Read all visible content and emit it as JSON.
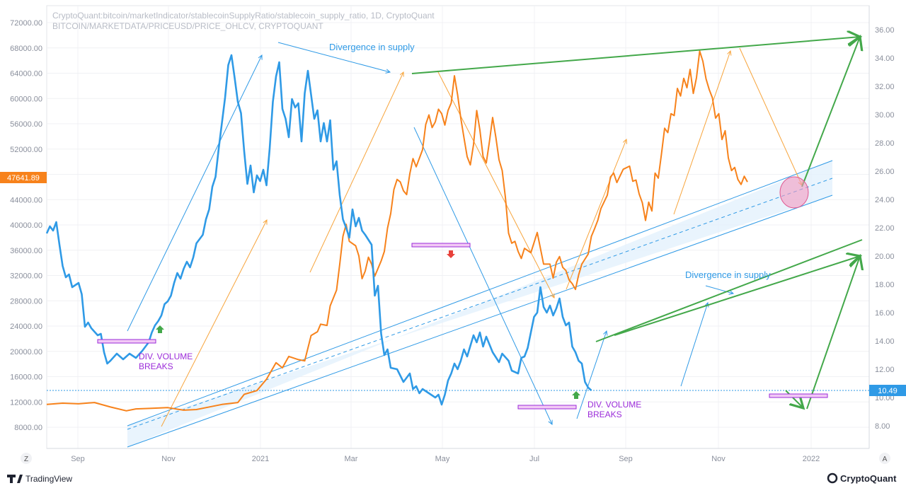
{
  "header": {
    "line1": "CryptoQuant:bitcoin/marketIndicator/stablecoinSupplyRatio/stablecoin_supply_ratio, 1D, CryptoQuant",
    "line2": "BITCOIN/MARKETDATA/PRICEUSD/PRICE_OHLCV, CRYPTOQUANT"
  },
  "chart_data": {
    "type": "line",
    "title": "",
    "xlabel": "",
    "ylabel": "",
    "x_ticks": [
      "Sep",
      "Nov",
      "2021",
      "Mar",
      "May",
      "Jul",
      "Sep",
      "Nov",
      "2022"
    ],
    "y_left_ticks": [
      "8000.00",
      "12000.00",
      "16000.00",
      "20000.00",
      "24000.00",
      "28000.00",
      "32000.00",
      "36000.00",
      "40000.00",
      "44000.00",
      "48000.00",
      "52000.00",
      "56000.00",
      "60000.00",
      "64000.00",
      "68000.00",
      "72000.00"
    ],
    "y_right_ticks": [
      "8.00",
      "10.00",
      "12.00",
      "14.00",
      "16.00",
      "18.00",
      "20.00",
      "22.00",
      "24.00",
      "26.00",
      "28.00",
      "30.00",
      "32.00",
      "34.00",
      "36.00"
    ],
    "ylim_left": [
      4000,
      74000
    ],
    "ylim_right": [
      6,
      37
    ],
    "grid": true,
    "series": [
      {
        "axis": "left",
        "color": "#f7821b",
        "points": [
          [
            0,
            11600
          ],
          [
            5,
            11800
          ],
          [
            10,
            11700
          ],
          [
            15,
            11900
          ],
          [
            20,
            11200
          ],
          [
            25,
            10600
          ],
          [
            28,
            10900
          ],
          [
            33,
            11000
          ],
          [
            38,
            11100
          ],
          [
            43,
            10700
          ],
          [
            47,
            10800
          ],
          [
            50,
            11100
          ],
          [
            55,
            11600
          ],
          [
            60,
            11900
          ],
          [
            62,
            13200
          ],
          [
            66,
            13800
          ],
          [
            69,
            15600
          ],
          [
            72,
            18200
          ],
          [
            74,
            17400
          ],
          [
            76,
            19200
          ],
          [
            79,
            18700
          ],
          [
            81,
            18500
          ],
          [
            83,
            22500
          ],
          [
            85,
            23100
          ],
          [
            86,
            24300
          ],
          [
            88,
            24100
          ],
          [
            89,
            27200
          ],
          [
            91,
            29700
          ],
          [
            92,
            33800
          ],
          [
            93,
            38200
          ],
          [
            94,
            40100
          ],
          [
            95,
            37400
          ],
          [
            97,
            36700
          ],
          [
            98,
            35100
          ],
          [
            99,
            31500
          ],
          [
            100,
            32700
          ],
          [
            101,
            34900
          ],
          [
            102,
            33800
          ],
          [
            103,
            31900
          ],
          [
            105,
            34300
          ],
          [
            106,
            35800
          ],
          [
            107,
            39500
          ],
          [
            108,
            41800
          ],
          [
            109,
            45600
          ],
          [
            110,
            47200
          ],
          [
            111,
            46800
          ],
          [
            112,
            45400
          ],
          [
            113,
            44800
          ],
          [
            114,
            48100
          ],
          [
            115,
            50500
          ],
          [
            116,
            49200
          ],
          [
            118,
            51900
          ],
          [
            119,
            55900
          ],
          [
            120,
            57400
          ],
          [
            121,
            55400
          ],
          [
            122,
            56300
          ],
          [
            123,
            58300
          ],
          [
            124,
            57600
          ],
          [
            125,
            55800
          ],
          [
            126,
            58100
          ],
          [
            127,
            59300
          ],
          [
            128,
            63600
          ],
          [
            129,
            60600
          ],
          [
            130,
            56900
          ],
          [
            131,
            53800
          ],
          [
            132,
            50800
          ],
          [
            133,
            49500
          ],
          [
            134,
            52700
          ],
          [
            135,
            58100
          ],
          [
            136,
            55000
          ],
          [
            137,
            50800
          ],
          [
            138,
            49800
          ],
          [
            139,
            53200
          ],
          [
            140,
            57000
          ],
          [
            141,
            53900
          ],
          [
            142,
            50300
          ],
          [
            143,
            48600
          ],
          [
            144,
            44400
          ],
          [
            145,
            38700
          ],
          [
            146,
            37100
          ],
          [
            147,
            37400
          ],
          [
            148,
            35800
          ],
          [
            149,
            34700
          ],
          [
            150,
            36300
          ],
          [
            152,
            35600
          ],
          [
            154,
            38800
          ],
          [
            156,
            33800
          ],
          [
            158,
            33800
          ],
          [
            159,
            31600
          ],
          [
            160,
            34100
          ],
          [
            161,
            35000
          ],
          [
            162,
            33300
          ],
          [
            163,
            32800
          ],
          [
            164,
            31300
          ],
          [
            165,
            30700
          ],
          [
            166,
            29800
          ],
          [
            167,
            32100
          ],
          [
            168,
            33800
          ],
          [
            170,
            35400
          ],
          [
            171,
            38200
          ],
          [
            172,
            39400
          ],
          [
            173,
            40700
          ],
          [
            174,
            42600
          ],
          [
            176,
            44700
          ],
          [
            177,
            47600
          ],
          [
            178,
            48200
          ],
          [
            179,
            46700
          ],
          [
            181,
            48800
          ],
          [
            183,
            49300
          ],
          [
            184,
            46900
          ],
          [
            185,
            47100
          ],
          [
            186,
            44900
          ],
          [
            187,
            43500
          ],
          [
            188,
            40700
          ],
          [
            189,
            43600
          ],
          [
            190,
            42200
          ],
          [
            191,
            48200
          ],
          [
            192,
            47400
          ],
          [
            193,
            51200
          ],
          [
            194,
            55300
          ],
          [
            195,
            54600
          ],
          [
            196,
            57600
          ],
          [
            197,
            57300
          ],
          [
            198,
            61600
          ],
          [
            199,
            60400
          ],
          [
            200,
            63200
          ],
          [
            201,
            61700
          ],
          [
            202,
            64600
          ],
          [
            203,
            60800
          ],
          [
            204,
            63300
          ],
          [
            205,
            67500
          ],
          [
            206,
            65900
          ],
          [
            207,
            63100
          ],
          [
            208,
            61400
          ],
          [
            209,
            60100
          ],
          [
            210,
            56900
          ],
          [
            211,
            57600
          ],
          [
            212,
            53500
          ],
          [
            213,
            54900
          ],
          [
            214,
            50600
          ],
          [
            215,
            48600
          ],
          [
            216,
            49100
          ],
          [
            217,
            47200
          ],
          [
            218,
            46400
          ],
          [
            219,
            47700
          ],
          [
            220,
            46800
          ]
        ]
      },
      {
        "axis": "right",
        "color": "#2f9ae6",
        "points": [
          [
            0,
            21.6
          ],
          [
            1,
            22.1
          ],
          [
            2,
            21.8
          ],
          [
            3,
            22.4
          ],
          [
            4,
            20.8
          ],
          [
            5,
            19.3
          ],
          [
            6,
            18.5
          ],
          [
            7,
            18.7
          ],
          [
            8,
            17.8
          ],
          [
            10,
            18.1
          ],
          [
            11,
            17.3
          ],
          [
            12,
            15.0
          ],
          [
            13,
            15.3
          ],
          [
            14,
            14.9
          ],
          [
            16,
            14.4
          ],
          [
            17,
            14.5
          ],
          [
            18,
            13.2
          ],
          [
            19,
            12.4
          ],
          [
            20,
            12.6
          ],
          [
            22,
            13.1
          ],
          [
            24,
            12.7
          ],
          [
            26,
            13.1
          ],
          [
            28,
            12.8
          ],
          [
            30,
            13.3
          ],
          [
            32,
            13.9
          ],
          [
            33,
            14.6
          ],
          [
            34,
            15.1
          ],
          [
            35,
            15.4
          ],
          [
            36,
            15.8
          ],
          [
            37,
            16.6
          ],
          [
            38,
            16.8
          ],
          [
            39,
            17.2
          ],
          [
            40,
            18.1
          ],
          [
            41,
            18.8
          ],
          [
            42,
            18.4
          ],
          [
            43,
            19.1
          ],
          [
            44,
            19.6
          ],
          [
            45,
            19.2
          ],
          [
            46,
            19.9
          ],
          [
            47,
            20.9
          ],
          [
            48,
            21.2
          ],
          [
            49,
            21.5
          ],
          [
            50,
            22.6
          ],
          [
            51,
            23.3
          ],
          [
            52,
            24.9
          ],
          [
            53,
            25.6
          ],
          [
            54,
            27.6
          ],
          [
            55,
            29.4
          ],
          [
            56,
            31.2
          ],
          [
            57,
            33.5
          ],
          [
            58,
            34.2
          ],
          [
            59,
            32.6
          ],
          [
            60,
            30.9
          ],
          [
            61,
            30.1
          ],
          [
            62,
            27.4
          ],
          [
            63,
            25.1
          ],
          [
            64,
            26.4
          ],
          [
            65,
            24.5
          ],
          [
            66,
            25.7
          ],
          [
            67,
            25.3
          ],
          [
            68,
            26.1
          ],
          [
            69,
            25.0
          ],
          [
            70,
            27.6
          ],
          [
            71,
            30.9
          ],
          [
            72,
            32.7
          ],
          [
            73,
            33.7
          ],
          [
            74,
            30.4
          ],
          [
            75,
            29.7
          ],
          [
            76,
            28.4
          ],
          [
            77,
            31.1
          ],
          [
            78,
            30.5
          ],
          [
            79,
            30.8
          ],
          [
            80,
            28.1
          ],
          [
            81,
            31.5
          ],
          [
            82,
            33.1
          ],
          [
            83,
            31.4
          ],
          [
            84,
            29.7
          ],
          [
            85,
            30.3
          ],
          [
            86,
            28.1
          ],
          [
            87,
            29.4
          ],
          [
            88,
            28.1
          ],
          [
            89,
            29.6
          ],
          [
            90,
            26.1
          ],
          [
            91,
            26.7
          ],
          [
            92,
            24.3
          ],
          [
            93,
            22.6
          ],
          [
            94,
            22.0
          ],
          [
            95,
            21.3
          ],
          [
            96,
            23.3
          ],
          [
            97,
            22.1
          ],
          [
            98,
            22.7
          ],
          [
            99,
            21.8
          ],
          [
            100,
            21.5
          ],
          [
            102,
            20.8
          ],
          [
            103,
            17.2
          ],
          [
            104,
            17.9
          ],
          [
            105,
            14.5
          ],
          [
            106,
            13.0
          ],
          [
            107,
            13.4
          ],
          [
            108,
            12.1
          ],
          [
            110,
            12.0
          ],
          [
            112,
            11.1
          ],
          [
            114,
            11.7
          ],
          [
            115,
            10.6
          ],
          [
            116,
            10.8
          ],
          [
            117,
            10.3
          ],
          [
            118,
            10.6
          ],
          [
            120,
            10.3
          ],
          [
            122,
            10.0
          ],
          [
            123,
            10.2
          ],
          [
            124,
            9.5
          ],
          [
            125,
            10.2
          ],
          [
            126,
            11.2
          ],
          [
            127,
            11.7
          ],
          [
            128,
            12.4
          ],
          [
            129,
            12.0
          ],
          [
            130,
            12.6
          ],
          [
            131,
            13.4
          ],
          [
            132,
            12.9
          ],
          [
            134,
            14.4
          ],
          [
            135,
            13.9
          ],
          [
            136,
            14.6
          ],
          [
            137,
            13.6
          ],
          [
            138,
            14.3
          ],
          [
            140,
            13.2
          ],
          [
            142,
            12.5
          ],
          [
            143,
            13.1
          ],
          [
            145,
            12.6
          ],
          [
            146,
            11.9
          ],
          [
            148,
            11.7
          ],
          [
            149,
            12.8
          ],
          [
            150,
            12.9
          ],
          [
            151,
            13.5
          ],
          [
            152,
            14.6
          ],
          [
            153,
            15.7
          ],
          [
            154,
            16.0
          ],
          [
            155,
            17.8
          ],
          [
            156,
            16.4
          ],
          [
            157,
            16.0
          ],
          [
            158,
            16.5
          ],
          [
            159,
            15.8
          ],
          [
            160,
            16.3
          ],
          [
            161,
            17.0
          ],
          [
            162,
            15.7
          ],
          [
            163,
            15.1
          ],
          [
            164,
            15.3
          ],
          [
            165,
            13.6
          ],
          [
            166,
            13.2
          ],
          [
            167,
            12.6
          ],
          [
            168,
            12.4
          ],
          [
            169,
            11.1
          ],
          [
            170,
            10.7
          ],
          [
            171,
            10.5
          ]
        ]
      }
    ],
    "last_value_labels": {
      "left": "47641.89",
      "right": "10.49"
    },
    "annotations": {
      "divergence_top": "Divergence in supply",
      "divergence_bottom": "Divergence in supply",
      "div_volume_left": [
        "DIV. VOLUME",
        "BREAKS"
      ],
      "div_volume_right": [
        "DIV. VOLUME",
        "BREAKS"
      ]
    },
    "colors": {
      "price": "#f7821b",
      "ssr": "#2f9ae6",
      "channel": "#2f9ae6",
      "green": "#43a84a",
      "purple": "#9b2bd9",
      "red": "#e8413a"
    }
  },
  "footer": {
    "left_brand": "TradingView",
    "right_brand": "CryptoQuant",
    "left_axis_button": "Z",
    "right_axis_button": "A"
  }
}
